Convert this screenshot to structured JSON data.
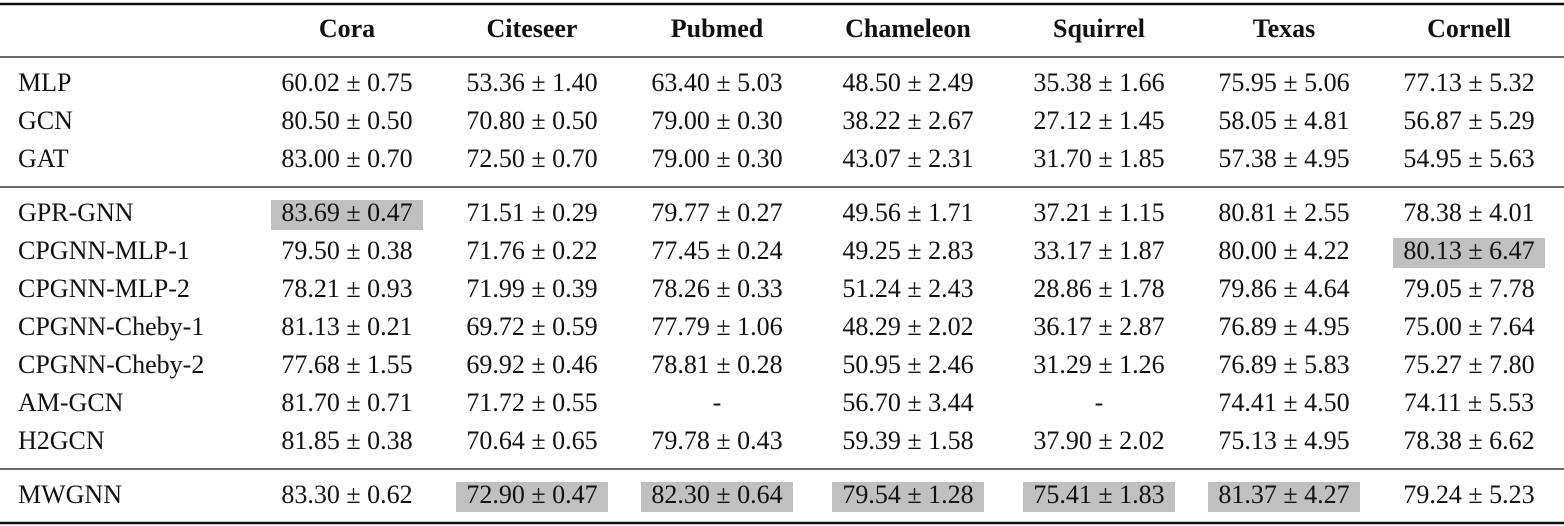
{
  "table": {
    "columns": [
      "",
      "Cora",
      "Citeseer",
      "Pubmed",
      "Chameleon",
      "Squirrel",
      "Texas",
      "Cornell"
    ],
    "groups": [
      [
        {
          "cells": [
            "MLP",
            "60.02 ± 0.75",
            "53.36 ± 1.40",
            "63.40 ± 5.03",
            "48.50 ± 2.49",
            "35.38 ± 1.66",
            "75.95 ± 5.06",
            "77.13 ± 5.32"
          ],
          "highlight": []
        },
        {
          "cells": [
            "GCN",
            "80.50 ± 0.50",
            "70.80 ± 0.50",
            "79.00 ± 0.30",
            "38.22 ± 2.67",
            "27.12 ± 1.45",
            "58.05 ± 4.81",
            "56.87 ± 5.29"
          ],
          "highlight": []
        },
        {
          "cells": [
            "GAT",
            "83.00 ± 0.70",
            "72.50 ± 0.70",
            "79.00 ± 0.30",
            "43.07 ± 2.31",
            "31.70 ± 1.85",
            "57.38 ± 4.95",
            "54.95 ± 5.63"
          ],
          "highlight": []
        }
      ],
      [
        {
          "cells": [
            "GPR-GNN",
            "83.69 ± 0.47",
            "71.51 ± 0.29",
            "79.77 ± 0.27",
            "49.56 ± 1.71",
            "37.21 ± 1.15",
            "80.81 ± 2.55",
            "78.38 ± 4.01"
          ],
          "highlight": [
            1
          ]
        },
        {
          "cells": [
            "CPGNN-MLP-1",
            "79.50 ± 0.38",
            "71.76 ± 0.22",
            "77.45 ± 0.24",
            "49.25 ± 2.83",
            "33.17 ± 1.87",
            "80.00 ± 4.22",
            "80.13 ± 6.47"
          ],
          "highlight": [
            7
          ]
        },
        {
          "cells": [
            "CPGNN-MLP-2",
            "78.21 ± 0.93",
            "71.99 ± 0.39",
            "78.26 ± 0.33",
            "51.24 ± 2.43",
            "28.86 ± 1.78",
            "79.86 ± 4.64",
            "79.05 ± 7.78"
          ],
          "highlight": []
        },
        {
          "cells": [
            "CPGNN-Cheby-1",
            "81.13 ± 0.21",
            "69.72 ± 0.59",
            "77.79 ± 1.06",
            "48.29 ± 2.02",
            "36.17 ± 2.87",
            "76.89 ± 4.95",
            "75.00 ± 7.64"
          ],
          "highlight": []
        },
        {
          "cells": [
            "CPGNN-Cheby-2",
            "77.68 ± 1.55",
            "69.92 ± 0.46",
            "78.81 ± 0.28",
            "50.95 ± 2.46",
            "31.29 ± 1.26",
            "76.89 ± 5.83",
            "75.27 ± 7.80"
          ],
          "highlight": []
        },
        {
          "cells": [
            "AM-GCN",
            "81.70 ± 0.71",
            "71.72 ± 0.55",
            "-",
            "56.70 ± 3.44",
            "-",
            "74.41 ± 4.50",
            "74.11 ± 5.53"
          ],
          "highlight": []
        },
        {
          "cells": [
            "H2GCN",
            "81.85 ± 0.38",
            "70.64 ± 0.65",
            "79.78 ± 0.43",
            "59.39 ± 1.58",
            "37.90 ± 2.02",
            "75.13 ± 4.95",
            "78.38 ± 6.62"
          ],
          "highlight": []
        }
      ],
      [
        {
          "cells": [
            "MWGNN",
            "83.30 ± 0.62",
            "72.90 ± 0.47",
            "82.30 ± 0.64",
            "79.54 ± 1.28",
            "75.41 ± 1.83",
            "81.37 ± 4.27",
            "79.24 ± 5.23"
          ],
          "highlight": [
            2,
            3,
            4,
            5,
            6
          ]
        }
      ]
    ]
  }
}
